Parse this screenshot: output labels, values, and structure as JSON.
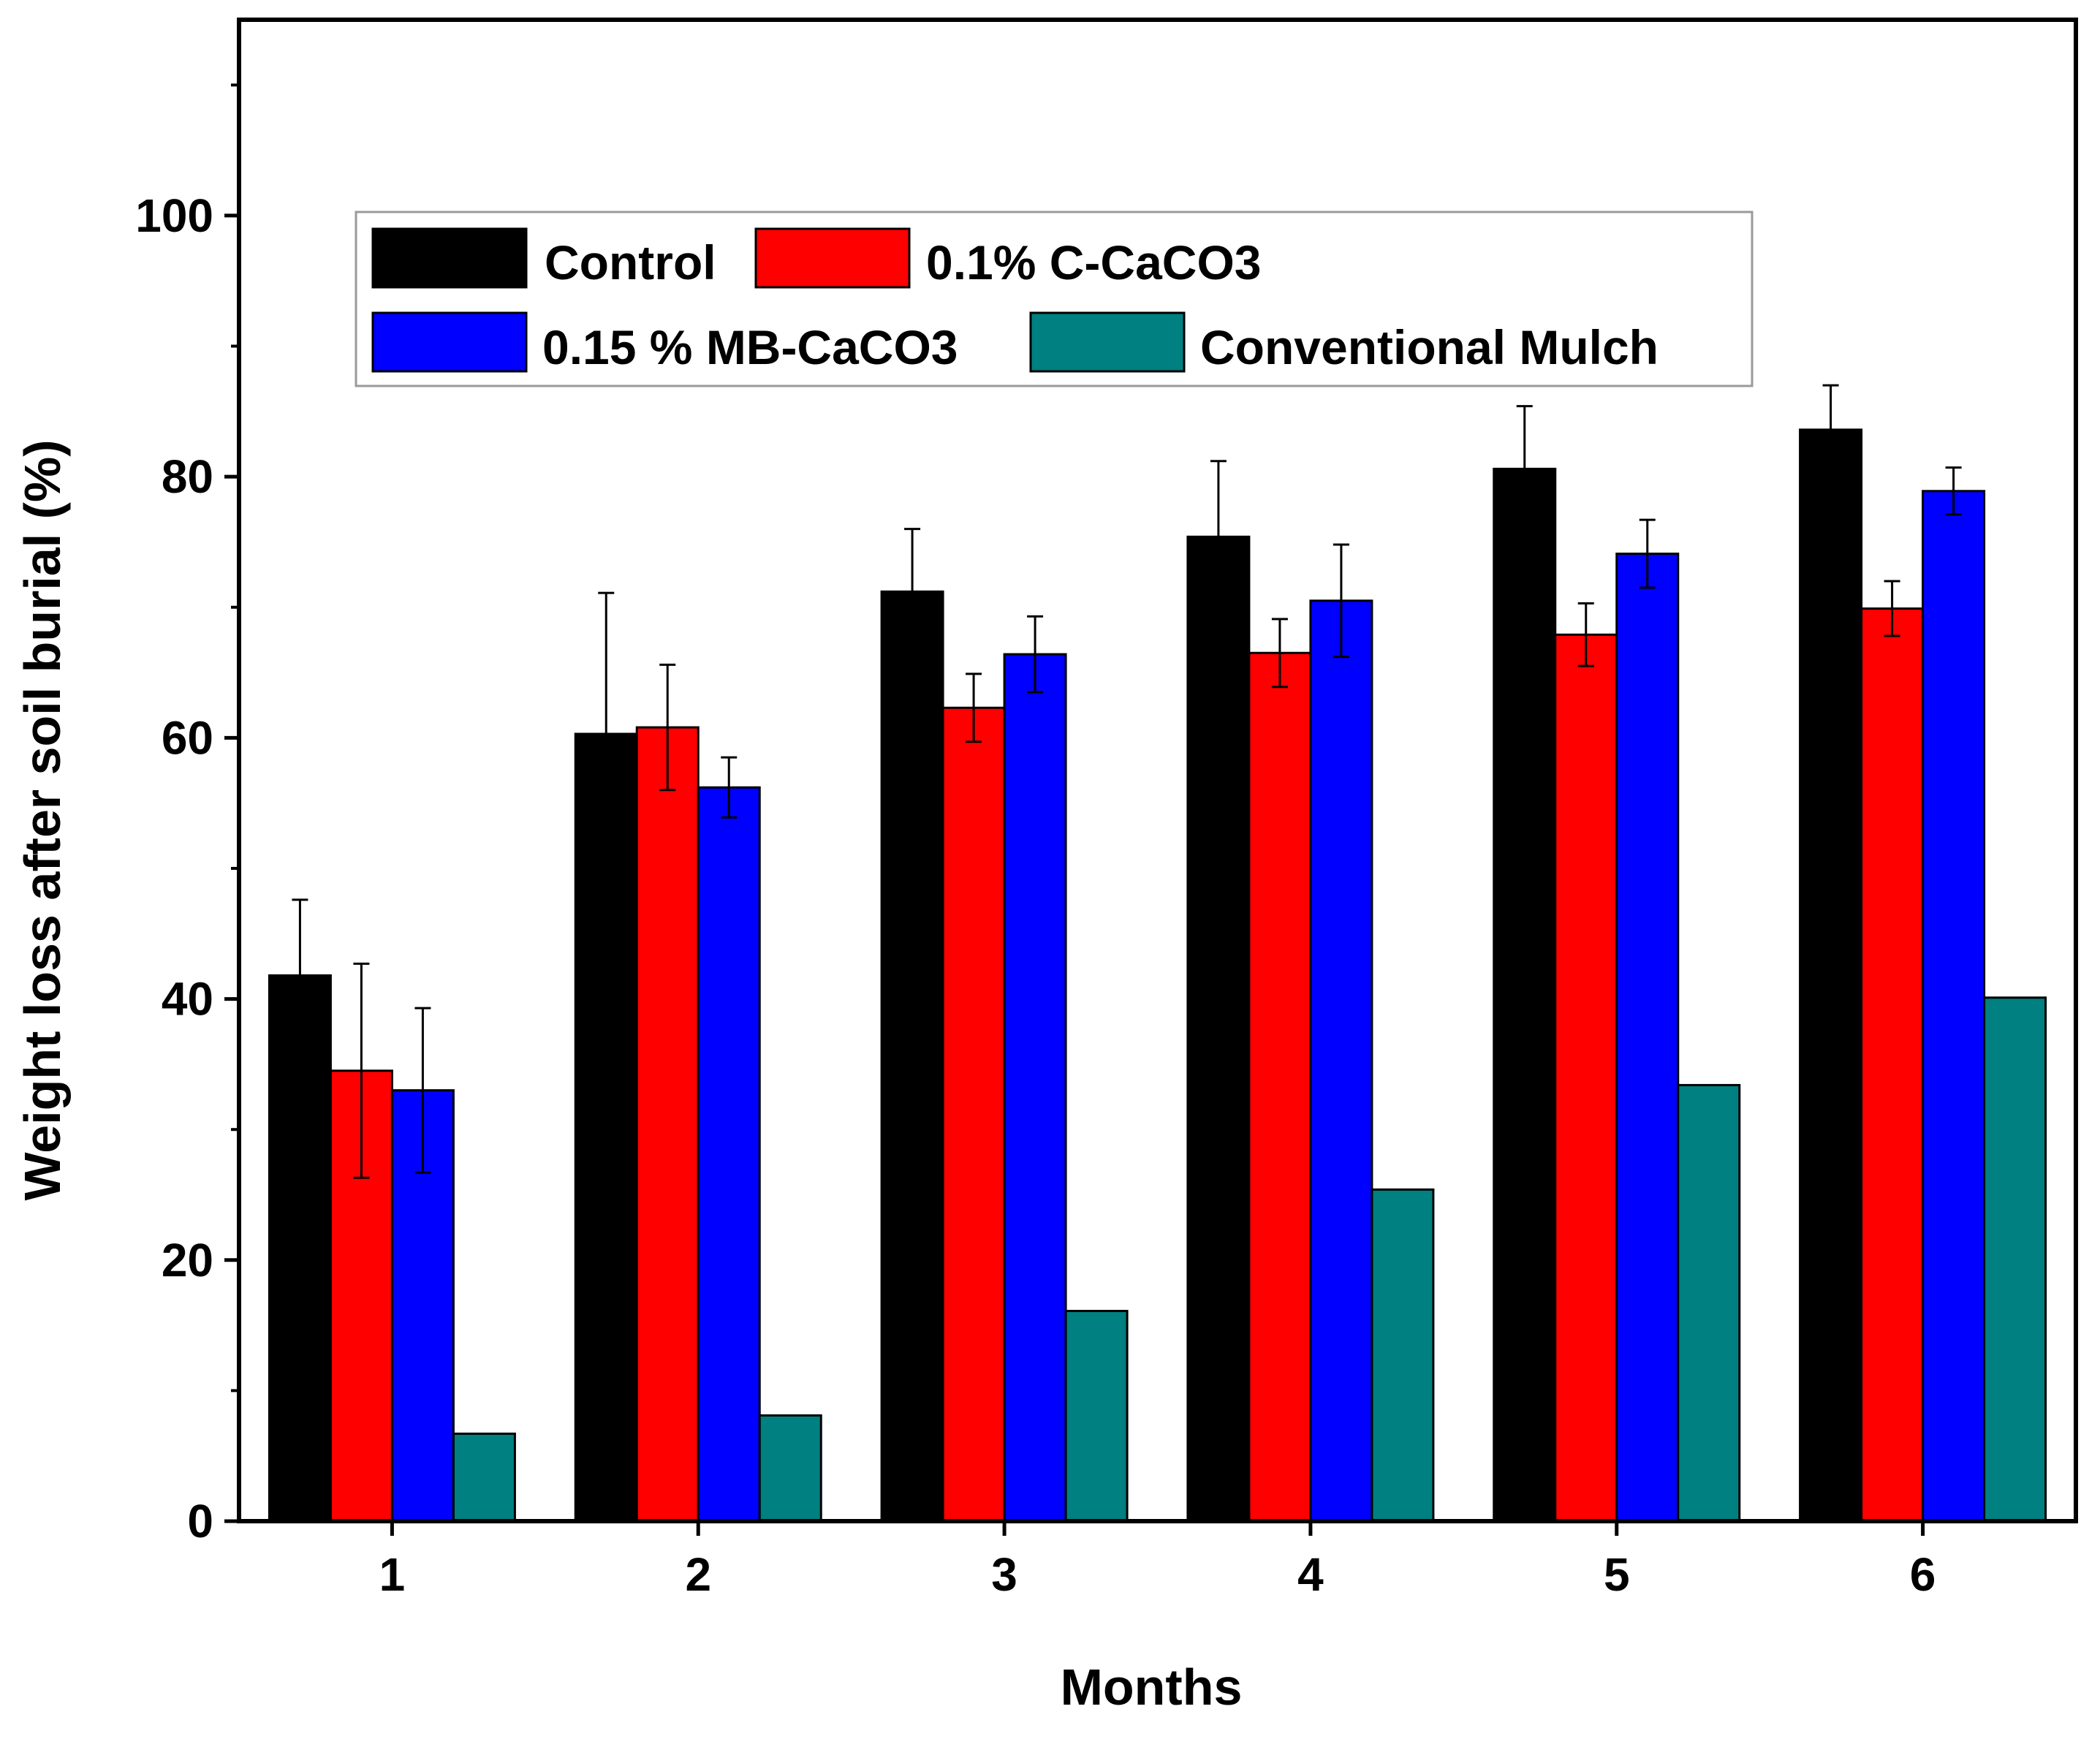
{
  "chart_data": {
    "type": "bar",
    "title": "",
    "xlabel": "Months",
    "ylabel": "Weight loss after soil burial (%)",
    "ylim": [
      0,
      115
    ],
    "yticks": [
      0,
      20,
      40,
      60,
      80,
      100
    ],
    "categories": [
      "1",
      "2",
      "3",
      "4",
      "5",
      "6"
    ],
    "series": [
      {
        "name": "Control",
        "color": "#000000",
        "values": [
          41.8,
          60.3,
          71.2,
          75.4,
          80.6,
          83.6
        ],
        "errors": [
          5.8,
          10.8,
          4.8,
          5.8,
          4.8,
          3.4
        ]
      },
      {
        "name": "0.1% C-CaCO3",
        "color": "#ff0000",
        "values": [
          34.5,
          60.8,
          62.3,
          66.5,
          67.9,
          69.9
        ],
        "errors": [
          8.2,
          4.8,
          2.6,
          2.6,
          2.4,
          2.1
        ]
      },
      {
        "name": "0.15 % MB-CaCO3",
        "color": "#0000ff",
        "values": [
          33.0,
          56.2,
          66.4,
          70.5,
          74.1,
          78.9
        ],
        "errors": [
          6.3,
          2.3,
          2.9,
          4.3,
          2.6,
          1.8
        ]
      },
      {
        "name": "Conventional Mulch",
        "color": "#008080",
        "values": [
          6.7,
          8.1,
          16.1,
          25.4,
          33.4,
          40.1
        ],
        "errors": [
          0,
          0,
          0,
          0,
          0,
          0
        ]
      }
    ],
    "legend": {
      "position": "top-left",
      "columns": 2
    },
    "grid": false
  }
}
